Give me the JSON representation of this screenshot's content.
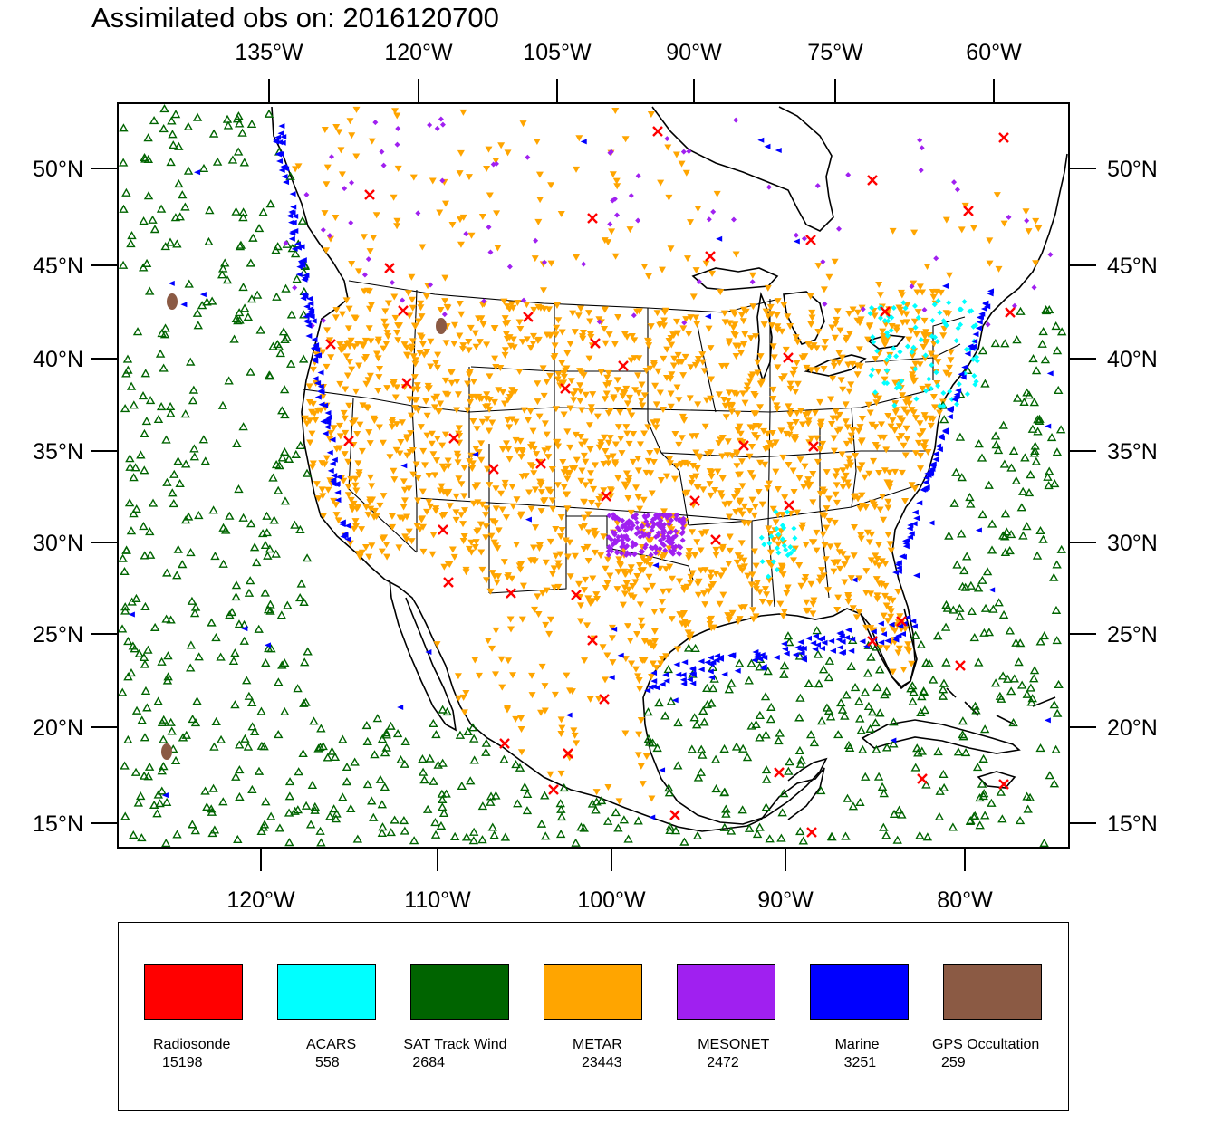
{
  "title": "Assimilated obs on: 2016120700",
  "axes": {
    "top_lon_labels": [
      "135°W",
      "120°W",
      "105°W",
      "90°W",
      "75°W",
      "60°W"
    ],
    "bottom_lon_labels": [
      "120°W",
      "110°W",
      "100°W",
      "90°W",
      "80°W"
    ],
    "left_lat_labels": [
      "50°N",
      "45°N",
      "40°N",
      "35°N",
      "30°N",
      "25°N",
      "20°N",
      "15°N"
    ],
    "right_lat_labels": [
      "50°N",
      "45°N",
      "40°N",
      "35°N",
      "30°N",
      "25°N",
      "20°N",
      "15°N"
    ]
  },
  "legend": {
    "items": [
      {
        "name": "Radiosonde",
        "count": "15198",
        "color": "#ff0000"
      },
      {
        "name": "ACARS",
        "count": "558",
        "color": "#00ffff"
      },
      {
        "name": "SAT Track Wind",
        "count": "2684",
        "color": "#006400"
      },
      {
        "name": "METAR",
        "count": "23443",
        "color": "#ffa500"
      },
      {
        "name": "MESONET",
        "count": "2472",
        "color": "#a020f0"
      },
      {
        "name": "Marine",
        "count": "3251",
        "color": "#0000ff"
      },
      {
        "name": "GPS Occultation",
        "count": "259",
        "color": "#8b5a44"
      }
    ]
  }
}
